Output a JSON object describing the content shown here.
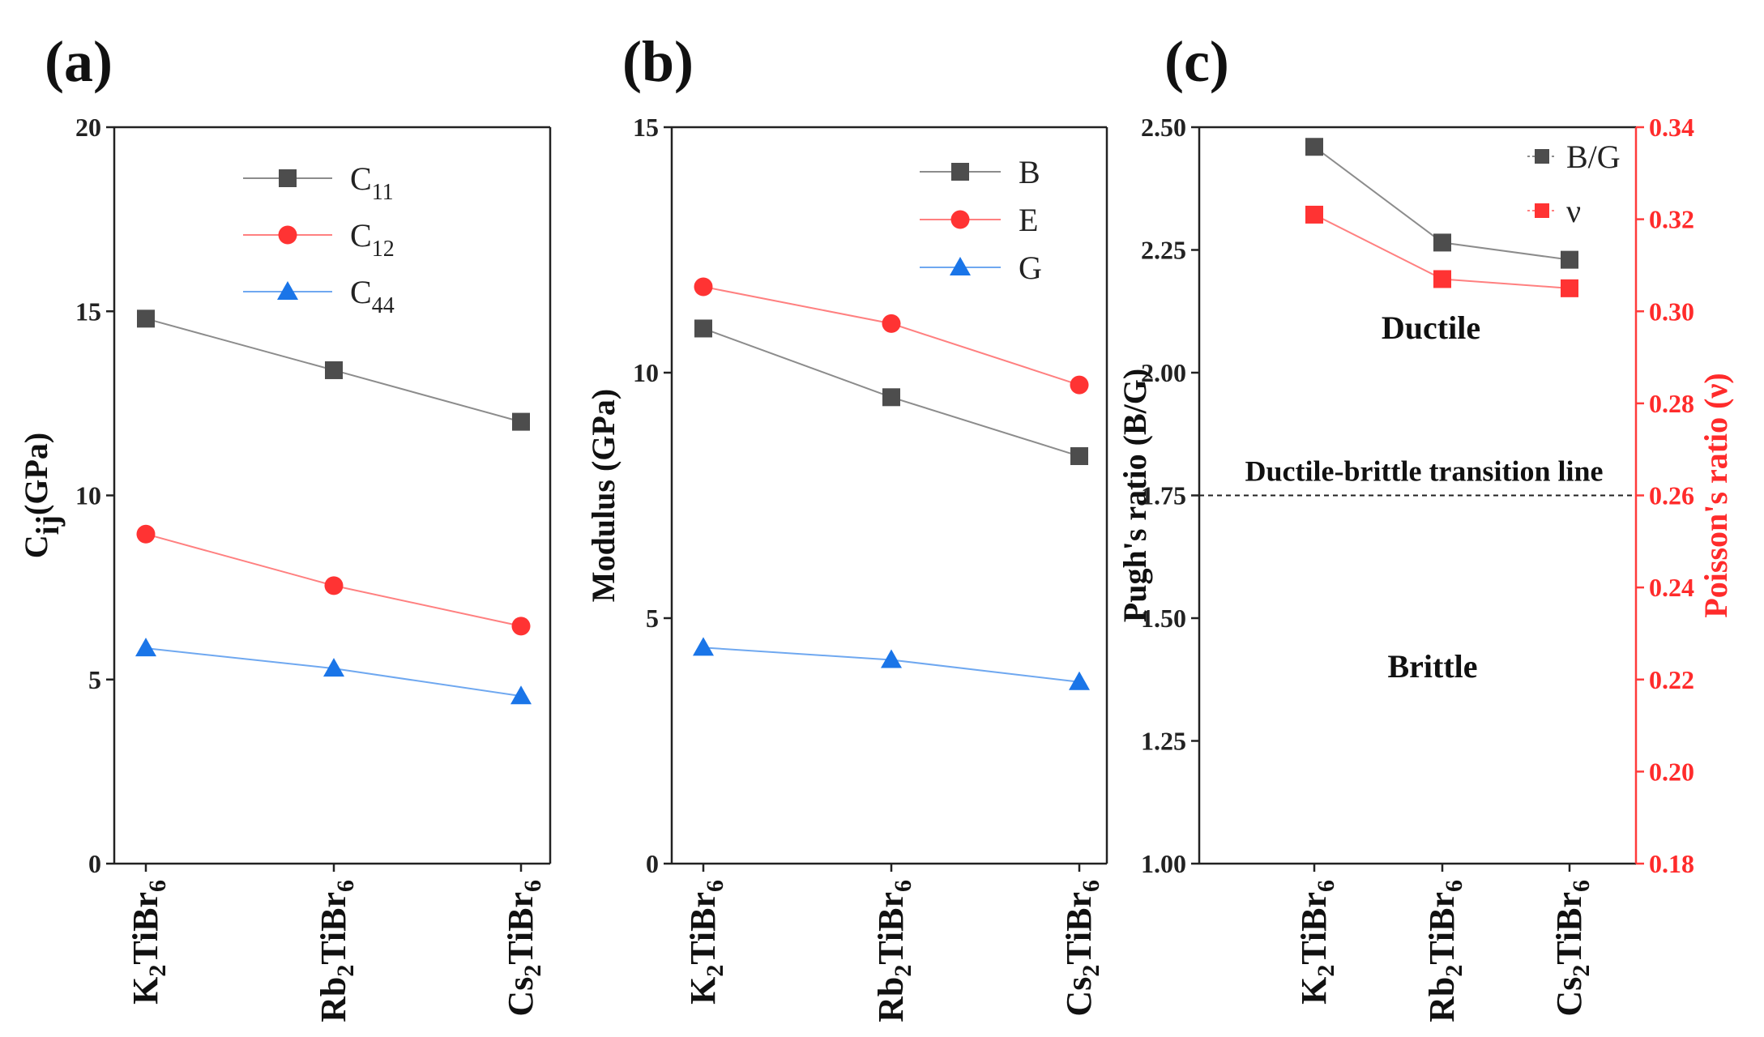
{
  "figure": {
    "categories_label_note": "shared x categories"
  },
  "chart_data": [
    {
      "type": "line",
      "panel_label": "(a)",
      "categories": [
        {
          "parts": [
            "K",
            "2",
            "TiBr",
            "6"
          ]
        },
        {
          "parts": [
            "Rb",
            "2",
            "TiBr",
            "6"
          ]
        },
        {
          "parts": [
            "Cs",
            "2",
            "TiBr",
            "6"
          ]
        }
      ],
      "ylabel": {
        "main": "C",
        "sub": "ij",
        "rest": "(GPa)"
      },
      "ylim": [
        0,
        20
      ],
      "yticks": [
        0,
        5,
        10,
        15,
        20
      ],
      "series": [
        {
          "name": "C",
          "sub": "11",
          "marker": "square",
          "color": "#4d4d4d",
          "line": "#8c8c8c",
          "values": [
            14.8,
            13.4,
            12.0
          ]
        },
        {
          "name": "C",
          "sub": "12",
          "marker": "circle",
          "color": "#ff3333",
          "line": "#ff8080",
          "values": [
            8.95,
            7.55,
            6.45
          ]
        },
        {
          "name": "C",
          "sub": "44",
          "marker": "triangle",
          "color": "#1a75e8",
          "line": "#6fa8f0",
          "values": [
            5.85,
            5.3,
            4.55
          ]
        }
      ]
    },
    {
      "type": "line",
      "panel_label": "(b)",
      "categories": [
        {
          "parts": [
            "K",
            "2",
            "TiBr",
            "6"
          ]
        },
        {
          "parts": [
            "Rb",
            "2",
            "TiBr",
            "6"
          ]
        },
        {
          "parts": [
            "Cs",
            "2",
            "TiBr",
            "6"
          ]
        }
      ],
      "ylabel": {
        "main": "Modulus (GPa)"
      },
      "ylim": [
        0,
        15
      ],
      "yticks": [
        0,
        5,
        10,
        15
      ],
      "series": [
        {
          "name": "B",
          "marker": "square",
          "color": "#4d4d4d",
          "line": "#8c8c8c",
          "values": [
            10.9,
            9.5,
            8.3
          ]
        },
        {
          "name": "E",
          "marker": "circle",
          "color": "#ff3333",
          "line": "#ff8080",
          "values": [
            11.75,
            11.0,
            9.75
          ]
        },
        {
          "name": "G",
          "marker": "triangle",
          "color": "#1a75e8",
          "line": "#6fa8f0",
          "values": [
            4.4,
            4.15,
            3.7
          ]
        }
      ]
    },
    {
      "type": "line",
      "panel_label": "(c)",
      "categories": [
        {
          "parts": [
            "K",
            "2",
            "TiBr",
            "6"
          ]
        },
        {
          "parts": [
            "Rb",
            "2",
            "TiBr",
            "6"
          ]
        },
        {
          "parts": [
            "Cs",
            "2",
            "TiBr",
            "6"
          ]
        }
      ],
      "ylabel": {
        "main": "Pugh's ratio (B/G)"
      },
      "ylabel_right": {
        "main": "Poisson's ratio (ν)"
      },
      "ylim": [
        1.0,
        2.5
      ],
      "yticks": [
        "1.00",
        "1.25",
        "1.50",
        "1.75",
        "2.00",
        "2.25",
        "2.50"
      ],
      "ylim_right": [
        0.18,
        0.34
      ],
      "yticks_right": [
        "0.18",
        "0.20",
        "0.22",
        "0.24",
        "0.26",
        "0.28",
        "0.30",
        "0.32",
        "0.34"
      ],
      "series": [
        {
          "name": "B/G",
          "axis": "left",
          "marker": "square",
          "color": "#4d4d4d",
          "line": "#8c8c8c",
          "values": [
            2.46,
            2.265,
            2.23
          ]
        },
        {
          "name": "ν",
          "axis": "right",
          "marker": "square",
          "color": "#ff3333",
          "line": "#ff8080",
          "values": [
            0.321,
            0.307,
            0.305
          ]
        }
      ],
      "reference_line": {
        "value": 1.75,
        "label": "Ductile-brittle transition line"
      },
      "annotations": {
        "ductile": "Ductile",
        "brittle": "Brittle"
      }
    }
  ]
}
